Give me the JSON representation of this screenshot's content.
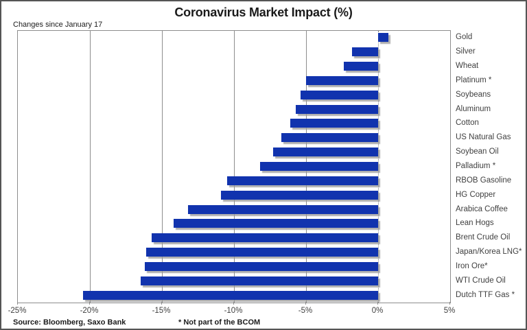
{
  "title": "Coronavirus Market Impact (%)",
  "subtitle": "Changes since January 17",
  "footer": {
    "source": "Source: Bloomberg, Saxo Bank",
    "note": "* Not part of the BCOM"
  },
  "chart_data": {
    "type": "bar",
    "orientation": "horizontal",
    "title": "Coronavirus Market Impact (%)",
    "subtitle": "Changes since January 17",
    "xlabel": "",
    "ylabel": "",
    "xlim": [
      -25,
      5
    ],
    "grid": "vertical",
    "legend_position": "none",
    "bar_color": "#1133ae",
    "zero_line_style": "dotted",
    "categories": [
      "Gold",
      "Silver",
      "Wheat",
      "Platinum *",
      "Soybeans",
      "Aluminum",
      "Cotton",
      "US Natural Gas",
      "Soybean Oil",
      "Palladium *",
      "RBOB Gasoline",
      "HG Copper",
      "Arabica Coffee",
      "Lean Hogs",
      "Brent Crude Oil",
      "Japan/Korea LNG*",
      "Iron Ore*",
      "WTI Crude Oil",
      "Dutch TTF Gas *"
    ],
    "values": [
      0.7,
      -1.8,
      -2.4,
      -5.0,
      -5.4,
      -5.7,
      -6.1,
      -6.7,
      -7.3,
      -8.2,
      -10.5,
      -10.9,
      -13.2,
      -14.2,
      -15.7,
      -16.1,
      -16.2,
      -16.5,
      -20.5
    ],
    "x_ticks": [
      {
        "value": -25,
        "label": "-25%"
      },
      {
        "value": -20,
        "label": "-20%"
      },
      {
        "value": -15,
        "label": "-15%"
      },
      {
        "value": -10,
        "label": "-10%"
      },
      {
        "value": -5,
        "label": "-5%"
      },
      {
        "value": 0,
        "label": "0%"
      },
      {
        "value": 5,
        "label": "5%"
      }
    ],
    "interior_gridlines": [
      -20,
      -15,
      -10,
      -5
    ]
  }
}
